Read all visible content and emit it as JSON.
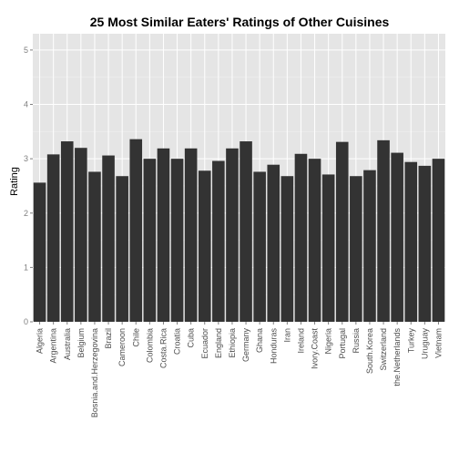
{
  "colors": {
    "panel": "#e5e5e5",
    "grid_major": "#ffffff",
    "grid_minor": "#f2f2f2",
    "bar": "#333333",
    "tick_text": "#7f7f7f"
  },
  "chart_data": {
    "type": "bar",
    "title": "25 Most Similar Eaters' Ratings of Other Cuisines",
    "xlabel": "",
    "ylabel": "Rating",
    "ylim": [
      0,
      5.3
    ],
    "yticks": [
      0,
      1,
      2,
      3,
      4,
      5
    ],
    "grid": true,
    "categories": [
      "Algeria",
      "Argentina",
      "Australia",
      "Belgium",
      "Bosnia.and.Herzegovina",
      "Brazil",
      "Cameroon",
      "Chile",
      "Colombia",
      "Costa.Rica",
      "Croatia",
      "Cuba",
      "Ecuador",
      "England",
      "Ethiopia",
      "Germany",
      "Ghana",
      "Honduras",
      "Iran",
      "Ireland",
      "Ivory.Coast",
      "Nigeria",
      "Portugal",
      "Russia",
      "South.Korea",
      "Switzerland",
      "the.Netherlands",
      "Turkey",
      "Uruguay",
      "Vietnam"
    ],
    "values": [
      2.56,
      3.08,
      3.32,
      3.2,
      2.76,
      3.06,
      2.68,
      3.36,
      3.0,
      3.19,
      3.0,
      3.19,
      2.78,
      2.96,
      3.19,
      3.32,
      2.76,
      2.89,
      2.68,
      3.09,
      3.0,
      2.71,
      3.31,
      2.68,
      2.79,
      3.34,
      3.11,
      2.94,
      2.87,
      3.0
    ]
  }
}
